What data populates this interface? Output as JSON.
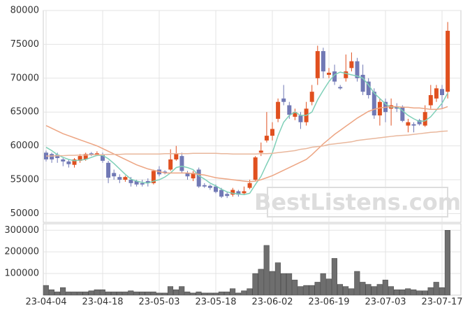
{
  "watermark": "BestListens.com",
  "chart_data": [
    {
      "type": "candlestick",
      "categories": [
        "23-04-04",
        null,
        null,
        null,
        null,
        null,
        null,
        null,
        null,
        null,
        "23-04-18",
        null,
        null,
        null,
        null,
        null,
        null,
        null,
        null,
        null,
        "23-05-03",
        null,
        null,
        null,
        null,
        null,
        null,
        null,
        null,
        null,
        "23-05-18",
        null,
        null,
        null,
        null,
        null,
        null,
        null,
        null,
        null,
        "23-06-02",
        null,
        null,
        null,
        null,
        null,
        null,
        null,
        null,
        null,
        "23-06-19",
        null,
        null,
        null,
        null,
        null,
        null,
        null,
        null,
        null,
        "23-07-03",
        null,
        null,
        null,
        null,
        null,
        null,
        null,
        null,
        null,
        "23-07-17",
        null
      ],
      "open": [
        59000,
        58800,
        58700,
        58000,
        57700,
        57200,
        57800,
        58000,
        58900,
        58700,
        58700,
        57500,
        56000,
        55400,
        55000,
        55000,
        54800,
        54500,
        54800,
        54500,
        56500,
        56200,
        56500,
        58000,
        58500,
        56000,
        55200,
        56500,
        54200,
        54100,
        54000,
        53500,
        52900,
        52800,
        53300,
        53000,
        53800,
        55000,
        59000,
        60800,
        61500,
        64000,
        67000,
        66000,
        64300,
        64500,
        63500,
        66500,
        70000,
        74000,
        70500,
        71000,
        68700,
        70000,
        71500,
        72500,
        70500,
        69500,
        68000,
        64500,
        66500,
        65500,
        65800,
        65800,
        63000,
        63200,
        63800,
        63000,
        66000,
        67000,
        68400,
        68000
      ],
      "high": [
        59300,
        59000,
        59000,
        58200,
        58000,
        58200,
        58800,
        59000,
        59100,
        59200,
        59000,
        57800,
        56500,
        55800,
        55600,
        55400,
        55000,
        55000,
        55200,
        56500,
        57000,
        56400,
        59500,
        60000,
        59000,
        56300,
        56300,
        56800,
        54500,
        54300,
        54300,
        53800,
        53200,
        53800,
        53500,
        54000,
        55000,
        58500,
        60500,
        65000,
        63500,
        67000,
        69000,
        66500,
        65500,
        65000,
        66500,
        69000,
        74800,
        74500,
        71500,
        72000,
        69000,
        73500,
        73800,
        73000,
        72000,
        70000,
        68500,
        67000,
        67000,
        67000,
        66300,
        66000,
        64000,
        63500,
        64000,
        66000,
        69000,
        69000,
        69000,
        78300
      ],
      "low": [
        57700,
        57500,
        57500,
        57000,
        56800,
        56800,
        57500,
        57800,
        58500,
        58500,
        57500,
        54500,
        55000,
        54500,
        54700,
        54000,
        54000,
        54000,
        54000,
        54300,
        55500,
        55800,
        56300,
        57800,
        56000,
        55000,
        54800,
        53800,
        53800,
        53500,
        53000,
        52300,
        52300,
        52500,
        52500,
        52800,
        53600,
        54800,
        58500,
        60500,
        60800,
        63500,
        66000,
        64000,
        63800,
        62500,
        63000,
        66000,
        69000,
        70000,
        70000,
        69000,
        68300,
        69500,
        71000,
        69500,
        67500,
        67000,
        64000,
        63000,
        63500,
        63000,
        65000,
        63500,
        62000,
        62000,
        63000,
        62800,
        65500,
        66500,
        65500,
        67000
      ],
      "close": [
        58000,
        58000,
        58200,
        57700,
        57300,
        58000,
        58500,
        58800,
        58700,
        58900,
        57800,
        55300,
        55500,
        55000,
        55400,
        54500,
        54300,
        54300,
        54500,
        56300,
        55800,
        56000,
        58000,
        58800,
        56300,
        55500,
        56000,
        54000,
        54000,
        53800,
        53200,
        52500,
        52600,
        53500,
        52800,
        53300,
        54500,
        58300,
        59300,
        61500,
        62500,
        66500,
        66500,
        64600,
        65000,
        63500,
        65500,
        68000,
        74000,
        71000,
        70800,
        69500,
        68500,
        71000,
        72500,
        70000,
        68000,
        67500,
        64500,
        66500,
        65000,
        66000,
        65500,
        63700,
        63500,
        63000,
        63200,
        65000,
        67500,
        68500,
        67500,
        77000
      ],
      "up_color": "#e0501f",
      "down_color": "#7179b5",
      "series": [
        {
          "color": "#7fd0b8",
          "values": [
            59800,
            59300,
            58700,
            58300,
            58000,
            57800,
            57900,
            58000,
            58300,
            58600,
            58600,
            58100,
            57400,
            56600,
            55800,
            55100,
            54800,
            54600,
            54500,
            54800,
            55000,
            55400,
            56000,
            56800,
            57000,
            56800,
            56500,
            55600,
            55100,
            54500,
            54100,
            53600,
            53200,
            53000,
            52900,
            52800,
            53000,
            54300,
            55500,
            57300,
            59000,
            61500,
            63500,
            64500,
            65000,
            64500,
            64500,
            65000,
            66800,
            68200,
            69500,
            70500,
            70900,
            70700,
            70500,
            70300,
            70000,
            69000,
            67800,
            67000,
            66200,
            65700,
            65800,
            65200,
            64500,
            64000,
            63600,
            63700,
            64300,
            65300,
            66300,
            67800
          ]
        },
        {
          "color": "#eda583",
          "values": [
            63000,
            62600,
            62200,
            61800,
            61500,
            61200,
            60900,
            60600,
            60300,
            60000,
            59600,
            59200,
            58800,
            58400,
            58000,
            57600,
            57200,
            56900,
            56600,
            56400,
            56200,
            56000,
            56000,
            56000,
            56000,
            56000,
            55900,
            55800,
            55700,
            55500,
            55300,
            55200,
            55100,
            55000,
            54900,
            54800,
            54700,
            54800,
            55000,
            55300,
            55600,
            56000,
            56400,
            56800,
            57200,
            57600,
            58000,
            58700,
            59500,
            60300,
            61000,
            61700,
            62300,
            62900,
            63500,
            64100,
            64600,
            65100,
            65400,
            65600,
            65700,
            65800,
            65800,
            65700,
            65700,
            65600,
            65600,
            65500,
            65400,
            65400,
            65500,
            65800
          ]
        },
        {
          "color": "#e9b79c",
          "values": [
            58500,
            58500,
            58550,
            58550,
            58600,
            58600,
            58650,
            58650,
            58700,
            58700,
            58700,
            58750,
            58750,
            58750,
            58800,
            58800,
            58800,
            58800,
            58800,
            58800,
            58800,
            58850,
            58850,
            58850,
            58850,
            58850,
            58900,
            58900,
            58900,
            58900,
            58900,
            58850,
            58850,
            58800,
            58800,
            58800,
            58800,
            58800,
            58850,
            58850,
            58900,
            59000,
            59100,
            59200,
            59300,
            59500,
            59600,
            59800,
            59900,
            60000,
            60200,
            60300,
            60400,
            60500,
            60600,
            60800,
            60900,
            61000,
            61100,
            61200,
            61300,
            61400,
            61500,
            61550,
            61600,
            61700,
            61800,
            61900,
            62000,
            62050,
            62150,
            62200
          ]
        }
      ],
      "ylim": [
        48700,
        80000
      ],
      "yticks": [
        50000,
        55000,
        60000,
        65000,
        70000,
        75000,
        80000
      ],
      "grid": true
    },
    {
      "type": "bar",
      "color": "#6e6e6e",
      "values": [
        45000,
        25000,
        15000,
        35000,
        15000,
        15000,
        15000,
        15000,
        20000,
        25000,
        25000,
        15000,
        15000,
        15000,
        15000,
        20000,
        15000,
        15000,
        15000,
        15000,
        10000,
        10000,
        40000,
        25000,
        40000,
        15000,
        10000,
        15000,
        10000,
        10000,
        10000,
        15000,
        15000,
        30000,
        10000,
        20000,
        30000,
        100000,
        120000,
        230000,
        110000,
        150000,
        100000,
        100000,
        70000,
        40000,
        45000,
        45000,
        60000,
        100000,
        75000,
        170000,
        50000,
        40000,
        30000,
        110000,
        60000,
        50000,
        40000,
        50000,
        70000,
        40000,
        25000,
        25000,
        30000,
        25000,
        20000,
        20000,
        35000,
        60000,
        35000,
        300000
      ],
      "ylim": [
        0,
        330000
      ],
      "yticks": [
        100000,
        200000,
        300000
      ],
      "grid": true
    }
  ]
}
